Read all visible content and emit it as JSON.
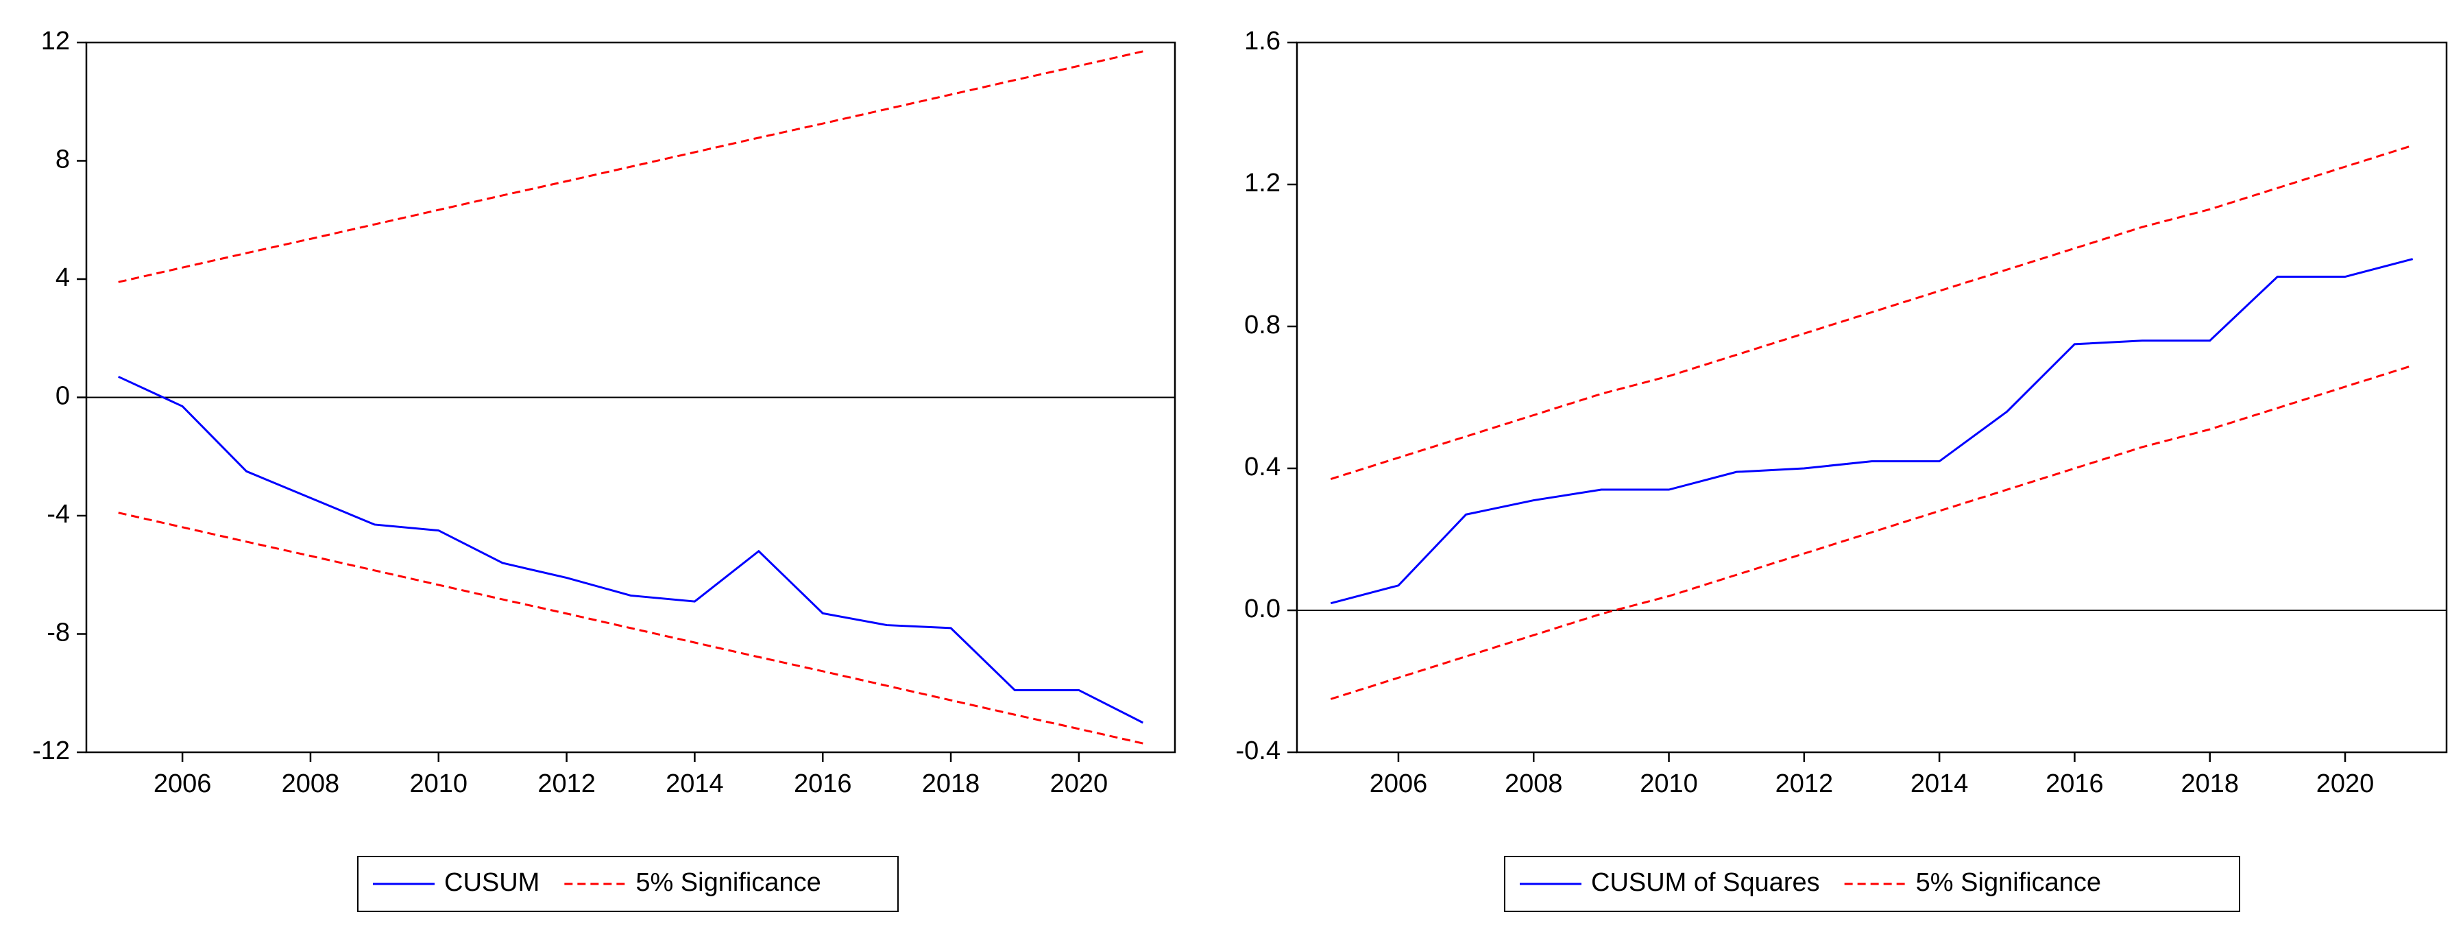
{
  "chart_data": [
    {
      "type": "line",
      "x": [
        2005,
        2006,
        2007,
        2008,
        2009,
        2010,
        2011,
        2012,
        2013,
        2014,
        2015,
        2016,
        2017,
        2018,
        2019,
        2020,
        2021
      ],
      "xlim": [
        2004.5,
        2021.5
      ],
      "xticks": [
        2006,
        2008,
        2010,
        2012,
        2014,
        2016,
        2018,
        2020
      ],
      "ylim": [
        -12,
        12
      ],
      "yticks": [
        -12,
        -8,
        -4,
        0,
        4,
        8,
        12
      ],
      "zero_line": true,
      "series": [
        {
          "name": "CUSUM",
          "color": "#0000ff",
          "style": "solid",
          "values": [
            0.7,
            -0.3,
            -2.5,
            -3.4,
            -4.3,
            -4.5,
            -5.6,
            -6.1,
            -6.7,
            -6.9,
            -5.2,
            -7.3,
            -7.7,
            -7.8,
            -9.9,
            -9.9,
            -11.0
          ]
        },
        {
          "name": "5% Significance",
          "color": "#ff0000",
          "style": "dashed",
          "values": [
            3.9,
            4.39,
            4.88,
            5.36,
            5.85,
            6.34,
            6.83,
            7.31,
            7.8,
            8.29,
            8.78,
            9.26,
            9.75,
            10.24,
            10.73,
            11.21,
            11.7
          ],
          "lower": [
            -3.9,
            -4.39,
            -4.88,
            -5.36,
            -5.85,
            -6.34,
            -6.83,
            -7.31,
            -7.8,
            -8.29,
            -8.78,
            -9.26,
            -9.75,
            -10.24,
            -10.73,
            -11.21,
            -11.7
          ]
        }
      ]
    },
    {
      "type": "line",
      "x": [
        2005,
        2006,
        2007,
        2008,
        2009,
        2010,
        2011,
        2012,
        2013,
        2014,
        2015,
        2016,
        2017,
        2018,
        2019,
        2020,
        2021
      ],
      "xlim": [
        2004.5,
        2021.5
      ],
      "xticks": [
        2006,
        2008,
        2010,
        2012,
        2014,
        2016,
        2018,
        2020
      ],
      "ylim": [
        -0.4,
        1.6
      ],
      "yticks": [
        -0.4,
        {
          "value": 0,
          "label": "0.0"
        },
        0.4,
        0.8,
        1.2,
        1.6
      ],
      "zero_line": true,
      "series": [
        {
          "name": "CUSUM of Squares",
          "color": "#0000ff",
          "style": "solid",
          "values": [
            0.02,
            0.07,
            0.27,
            0.31,
            0.34,
            0.34,
            0.39,
            0.4,
            0.42,
            0.42,
            0.56,
            0.75,
            0.76,
            0.76,
            0.94,
            0.94,
            0.99
          ]
        },
        {
          "name": "5% Significance",
          "color": "#ff0000",
          "style": "dashed",
          "values": [
            0.37,
            0.43,
            0.49,
            0.55,
            0.61,
            0.66,
            0.72,
            0.78,
            0.84,
            0.9,
            0.96,
            1.02,
            1.08,
            1.13,
            1.19,
            1.25,
            1.31
          ],
          "lower": [
            -0.25,
            -0.19,
            -0.13,
            -0.07,
            -0.01,
            0.04,
            0.1,
            0.16,
            0.22,
            0.28,
            0.34,
            0.4,
            0.46,
            0.51,
            0.57,
            0.63,
            0.69
          ]
        }
      ]
    }
  ]
}
